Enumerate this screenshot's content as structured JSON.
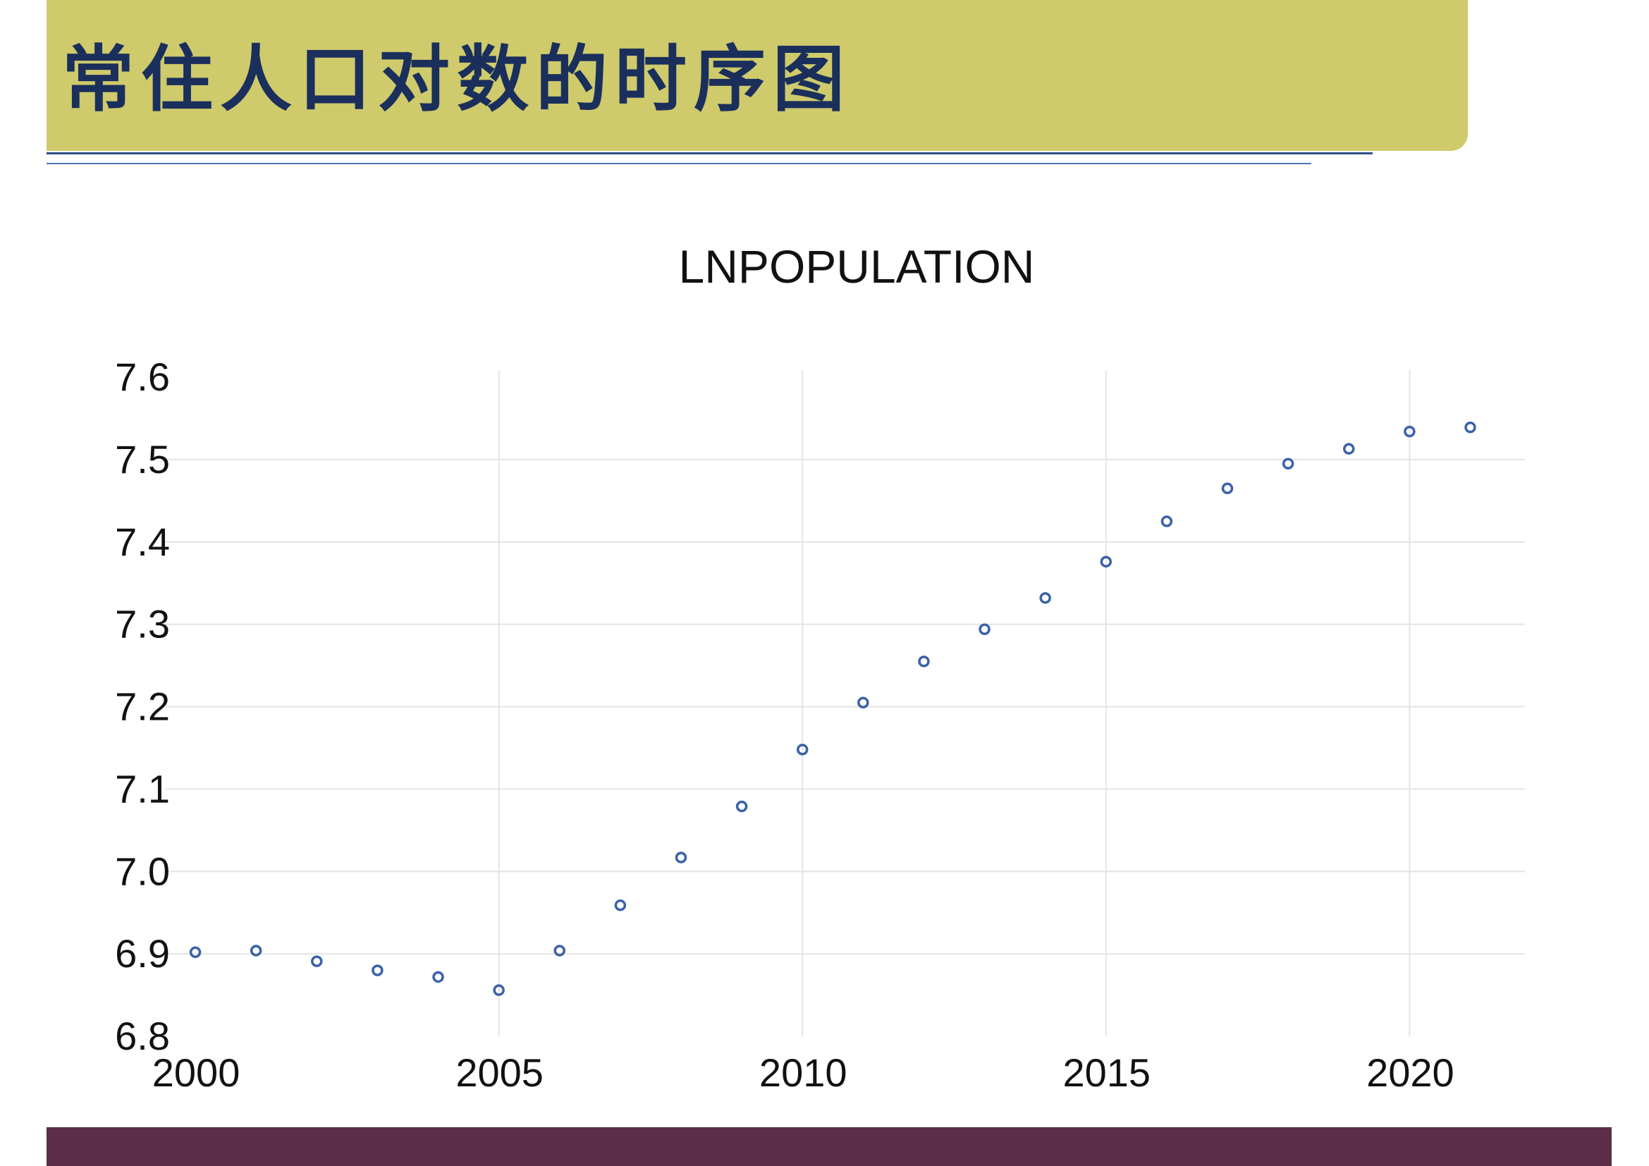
{
  "slide": {
    "title": "常住人口对数的时序图"
  },
  "colors": {
    "banner": "#cfca6b",
    "title_text": "#1a2f5c",
    "footer": "#5b2d47",
    "marker": "#3b62a9"
  },
  "chart_data": {
    "type": "scatter",
    "title": "LNPOPULATION",
    "xlabel": "",
    "ylabel": "",
    "xlim": [
      1999.5,
      2021.9
    ],
    "ylim": [
      6.8,
      7.6
    ],
    "x_ticks": [
      "2000",
      "2005",
      "2010",
      "2015",
      "2020"
    ],
    "y_ticks": [
      "6.8",
      "6.9",
      "7.0",
      "7.1",
      "7.2",
      "7.3",
      "7.4",
      "7.5",
      "7.6"
    ],
    "grid": true,
    "legend": "none",
    "marker": "hollow-circle",
    "series": [
      {
        "x": [
          2000,
          2001,
          2002,
          2003,
          2004,
          2005,
          2006,
          2007,
          2008,
          2009,
          2010,
          2011,
          2012,
          2013,
          2014,
          2015,
          2016,
          2017,
          2018,
          2019,
          2020,
          2021
        ],
        "values": [
          6.902,
          6.904,
          6.891,
          6.88,
          6.872,
          6.856,
          6.904,
          6.959,
          7.017,
          7.079,
          7.148,
          7.205,
          7.255,
          7.294,
          7.332,
          7.376,
          7.425,
          7.465,
          7.495,
          7.513,
          7.534,
          7.539
        ]
      }
    ]
  }
}
